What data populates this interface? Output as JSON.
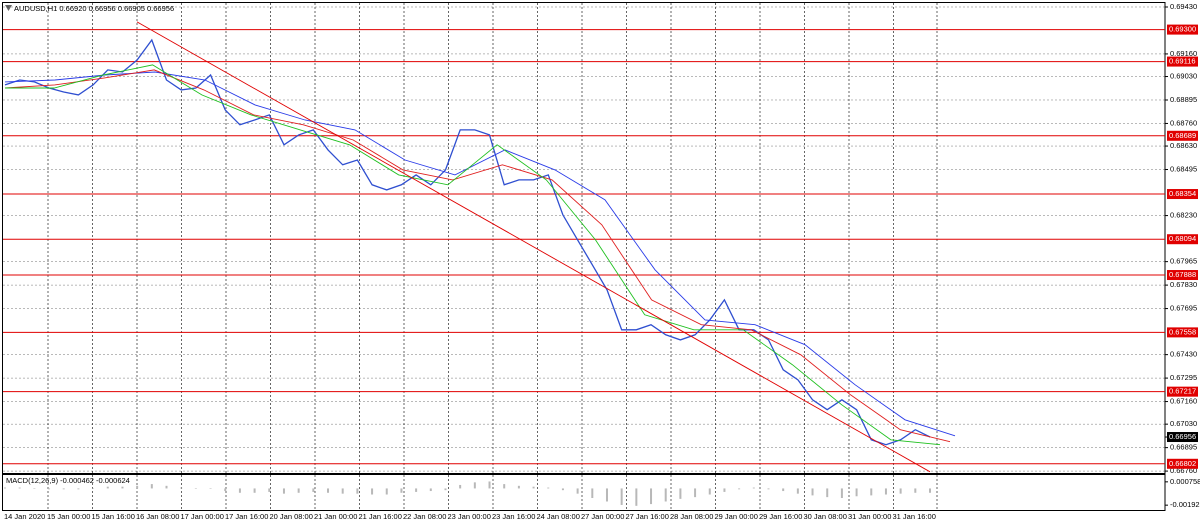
{
  "chart_data": [
    {
      "type": "line",
      "title": "AUDUSD,H1 0.66920 0.66956 0.66905 0.66956",
      "time_labels": [
        "14 Jan 2020",
        "15 Jan 00:00",
        "15 Jan 16:00",
        "16 Jan 08:00",
        "17 Jan 00:00",
        "17 Jan 16:00",
        "20 Jan 08:00",
        "21 Jan 00:00",
        "21 Jan 16:00",
        "22 Jan 08:00",
        "23 Jan 00:00",
        "23 Jan 16:00",
        "24 Jan 08:00",
        "27 Jan 00:00",
        "27 Jan 16:00",
        "28 Jan 08:00",
        "29 Jan 00:00",
        "29 Jan 16:00",
        "30 Jan 08:00",
        "31 Jan 00:00",
        "31 Jan 16:00"
      ],
      "ylim": [
        0.66749,
        0.69453
      ],
      "yticks": [
        {
          "value": 0.6943,
          "label": "0.69430"
        },
        {
          "value": 0.6916,
          "label": "0.69160"
        },
        {
          "value": 0.6903,
          "label": "0.69030"
        },
        {
          "value": 0.68895,
          "label": "0.68895"
        },
        {
          "value": 0.6876,
          "label": "0.68760"
        },
        {
          "value": 0.6863,
          "label": "0.68630"
        },
        {
          "value": 0.68495,
          "label": "0.68495"
        },
        {
          "value": 0.6823,
          "label": "0.68230"
        },
        {
          "value": 0.67965,
          "label": "0.67965"
        },
        {
          "value": 0.6783,
          "label": "0.67830"
        },
        {
          "value": 0.67695,
          "label": "0.67695"
        },
        {
          "value": 0.6743,
          "label": "0.67430"
        },
        {
          "value": 0.67295,
          "label": "0.67295"
        },
        {
          "value": 0.6716,
          "label": "0.67160"
        },
        {
          "value": 0.6703,
          "label": "0.67030"
        },
        {
          "value": 0.66895,
          "label": "0.66895"
        },
        {
          "value": 0.6676,
          "label": "0.66760"
        }
      ],
      "grid": true,
      "levels": [
        {
          "value": 0.693,
          "label": "0.69300"
        },
        {
          "value": 0.69116,
          "label": "0.69116"
        },
        {
          "value": 0.68689,
          "label": "0.68689"
        },
        {
          "value": 0.68354,
          "label": "0.68354"
        },
        {
          "value": 0.68094,
          "label": "0.68094"
        },
        {
          "value": 0.67888,
          "label": "0.67888"
        },
        {
          "value": 0.67558,
          "label": "0.67558"
        },
        {
          "value": 0.67217,
          "label": "0.67217"
        },
        {
          "value": 0.66802,
          "label": "0.66802"
        }
      ],
      "level_color": "#e00000",
      "current_price": {
        "value": 0.66956,
        "label": "0.66956"
      },
      "series": [
        {
          "color": "#2f4fd0",
          "values": [
            0.68982,
            0.6901,
            0.68999,
            0.68964,
            0.68941,
            0.68924,
            0.68982,
            0.69068,
            0.69056,
            0.69125,
            0.6924,
            0.6901,
            0.68953,
            0.68964,
            0.69039,
            0.68838,
            0.68752,
            0.6878,
            0.68809,
            0.68637,
            0.68694,
            0.68723,
            0.68608,
            0.68522,
            0.6855,
            0.68407,
            0.68378,
            0.68407,
            0.68464,
            0.68407,
            0.68493,
            0.68723,
            0.68723,
            0.68694,
            0.68407,
            0.68435,
            0.68435,
            0.68464,
            0.68234,
            0.6809,
            0.67947,
            0.67803,
            0.67573,
            0.67573,
            0.67602,
            0.67544,
            0.67515,
            0.67544,
            0.6763,
            0.67745,
            0.67573,
            0.67573,
            0.67515,
            0.67343,
            0.67285,
            0.6717,
            0.67113,
            0.6717,
            0.67113,
            0.6694,
            0.66912,
            0.6694,
            0.66998,
            0.66956
          ]
        },
        {
          "color": "#2a3ce8",
          "values": [
            0.68999,
            0.6901,
            0.69039,
            0.69056,
            0.6901,
            0.68867,
            0.6878,
            0.68723,
            0.6855,
            0.68464,
            0.68608,
            0.68493,
            0.6832,
            0.67918,
            0.6763,
            0.67602,
            0.67487,
            0.67257,
            0.67055,
            0.66963
          ]
        },
        {
          "color": "#e02020",
          "values": [
            0.68964,
            0.68982,
            0.69022,
            0.69068,
            0.68953,
            0.68809,
            0.68752,
            0.68665,
            0.68493,
            0.68435,
            0.68522,
            0.68435,
            0.68177,
            0.67745,
            0.67602,
            0.67573,
            0.67429,
            0.67199,
            0.66998,
            0.66929
          ]
        },
        {
          "color": "#20c020",
          "values": [
            0.68964,
            0.68964,
            0.69039,
            0.69097,
            0.68924,
            0.68809,
            0.68723,
            0.68637,
            0.68464,
            0.68407,
            0.68637,
            0.68435,
            0.6809,
            0.67659,
            0.67573,
            0.67573,
            0.67372,
            0.67142,
            0.6694,
            0.66912
          ]
        }
      ],
      "trendline": {
        "color": "#e00000",
        "values": [
          0.69344,
          0.66756
        ]
      }
    },
    {
      "type": "bar",
      "title": "MACD(12,26,9) -0.000462 -0.000624",
      "color": "#b8b8b8",
      "values": [
        0.0001,
        0.0001,
        0,
        -0.0001,
        -0.0001,
        -0.0001,
        0,
        0.0002,
        0.0002,
        0.0003,
        0.0005,
        0.0003,
        0.0001,
        0,
        0,
        -0.0003,
        -0.0005,
        -0.0005,
        -0.0004,
        -0.0006,
        -0.0005,
        -0.0004,
        -0.0005,
        -0.0006,
        -0.0006,
        -0.0007,
        -0.0007,
        -0.0005,
        -0.0004,
        -0.0003,
        -0.0002,
        0.0004,
        0.0007,
        0.0008,
        0.0005,
        0.0003,
        0.0002,
        0.0001,
        -0.0002,
        -0.0006,
        -0.0011,
        -0.0015,
        -0.0019,
        -0.002,
        -0.0018,
        -0.0015,
        -0.0012,
        -0.001,
        -0.0007,
        -0.0004,
        -0.0001,
        0.0001,
        -0.0001,
        -0.0003,
        -0.0006,
        -0.0008,
        -0.001,
        -0.0011,
        -0.0009,
        -0.0008,
        -0.0007,
        -0.0006,
        -0.0005,
        -0.0005
      ],
      "ylim": [
        -0.00248,
        0.00143
      ],
      "yticks": [
        0.000758,
        -0.001923
      ]
    }
  ]
}
